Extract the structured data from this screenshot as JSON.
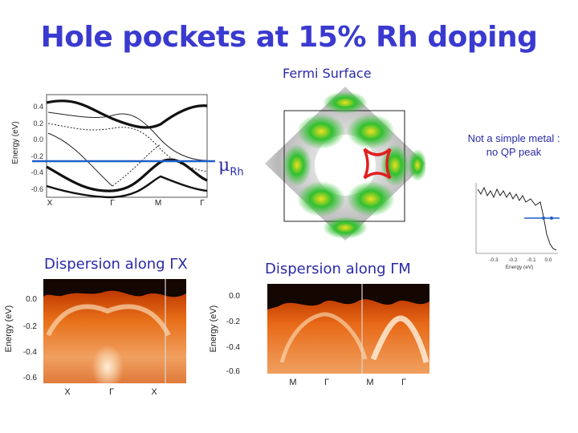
{
  "slide": {
    "title": "Hole pockets at 15% Rh doping",
    "fermi_surface_title": "Fermi Surface",
    "note_line1": "Not a simple metal :",
    "note_line2": "no QP peak",
    "mu_symbol": "μ",
    "mu_subscript": "Rh"
  },
  "band_plot": {
    "ylabel": "Energy (eV)",
    "yticks": [
      "0.4",
      "0.2",
      "0.0",
      "-0.2",
      "-0.4",
      "-0.6"
    ],
    "xticks": [
      "X",
      "Γ",
      "M",
      "Γ"
    ]
  },
  "edc_plot": {
    "xticks": [
      "-0.3",
      "-0.2",
      "-0.1",
      "0.0"
    ],
    "xlabel": "Energy (eV)"
  },
  "panel_gx": {
    "caption": "Dispersion along ΓX",
    "ylabel": "Energy (eV)",
    "yticks": [
      "0.0",
      "-0.2",
      "-0.4",
      "-0.6"
    ],
    "xticks": [
      "X",
      "Γ",
      "X"
    ]
  },
  "panel_gm": {
    "caption": "Dispersion along ΓM",
    "ylabel": "Energy (eV)",
    "yticks": [
      "0.0",
      "-0.2",
      "-0.4",
      "-0.6"
    ],
    "xticks": [
      "M",
      "Γ",
      "M",
      "Γ"
    ]
  },
  "colors": {
    "title": "#3a3ad0",
    "caption": "#2a2aa8",
    "fermi_line": "#1f5fc8",
    "pocket": "#e02020"
  }
}
